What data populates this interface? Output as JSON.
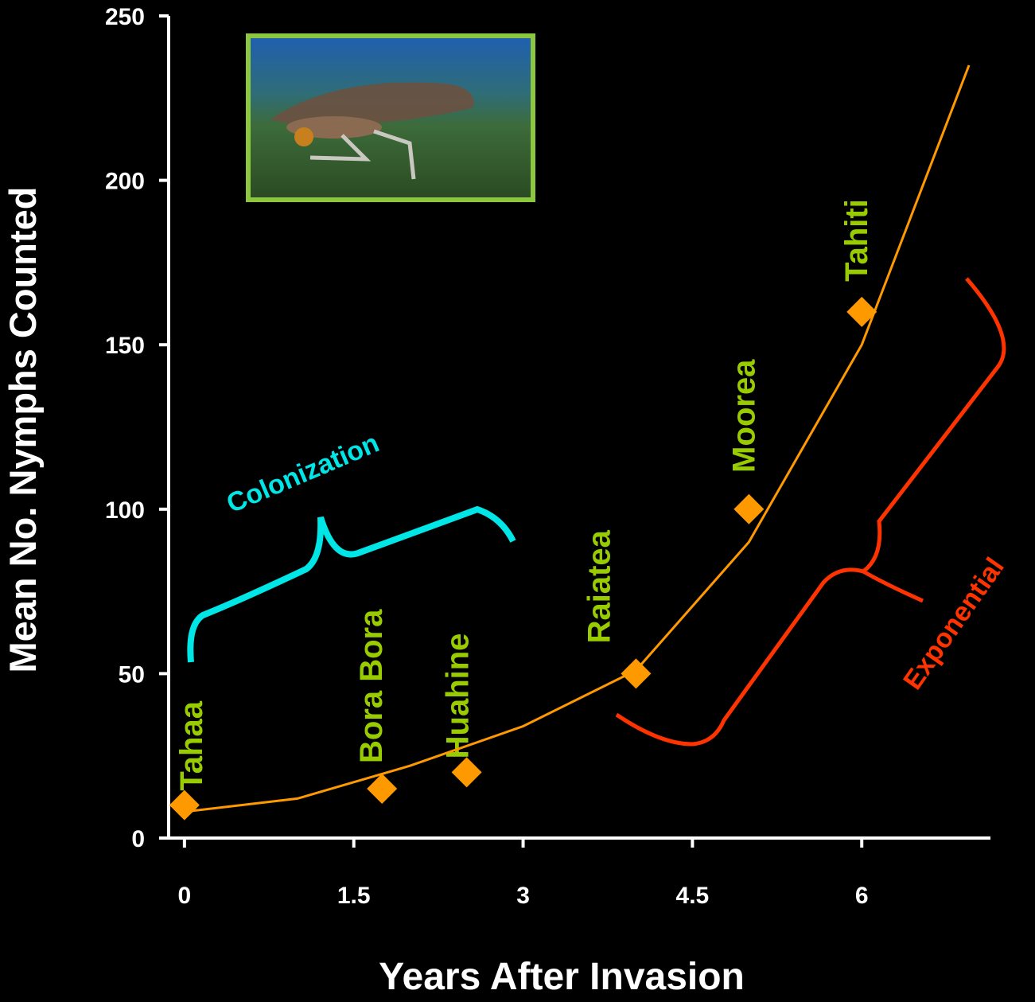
{
  "chart_data": {
    "type": "scatter",
    "y_label": "Mean No. Nymphs Counted",
    "x_label": "Years After Invasion",
    "xlim": [
      -0.14,
      7.14
    ],
    "xticks": [
      0,
      1.5,
      3,
      4.5,
      6
    ],
    "ylim": [
      0,
      250
    ],
    "yticks": [
      0,
      50,
      100,
      150,
      200,
      250
    ],
    "series": [
      {
        "x": [
          0,
          1.75,
          2.5,
          4,
          5,
          6
        ],
        "values": [
          10,
          15,
          20,
          50,
          100,
          160
        ],
        "color": "#ff9900",
        "labels": [
          "Tahaa",
          "Bora Bora",
          "Huahine",
          "Raiatea",
          "Moorea",
          "Tahiti"
        ],
        "label_color": "#99cc00"
      },
      {
        "x": [
          0,
          1,
          2,
          3,
          4,
          5,
          6,
          6.95
        ],
        "values": [
          8,
          12,
          22,
          34,
          51,
          90,
          150,
          235
        ],
        "color": "#ff9900",
        "line": true
      }
    ],
    "annotations": [
      {
        "text": "Colonization",
        "color": "#00e5e5"
      },
      {
        "text": "Exponential",
        "color": "#ff3300"
      }
    ]
  }
}
